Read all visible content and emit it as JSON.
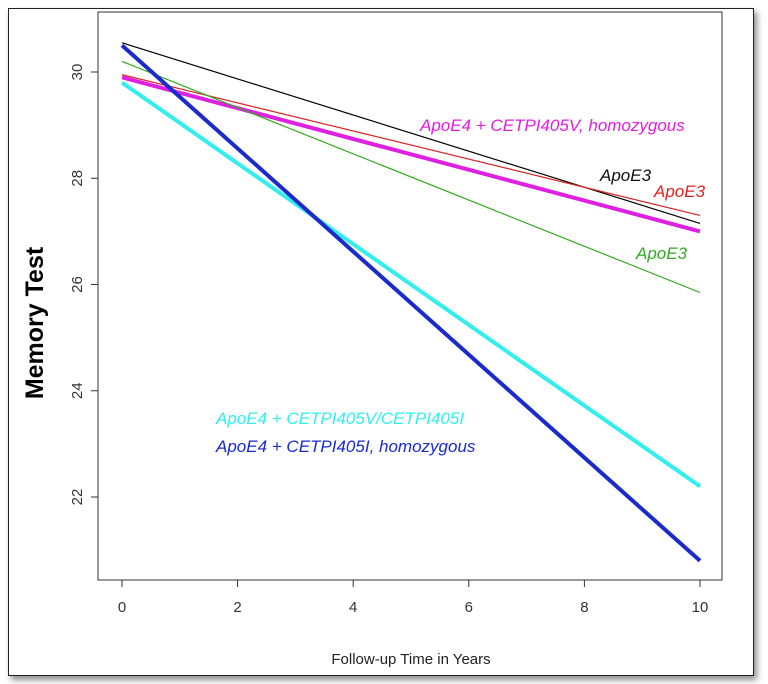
{
  "chart_data": {
    "type": "line",
    "title": "",
    "xlabel": "Follow-up Time in Years",
    "ylabel": "Memory Test",
    "xlim": [
      0,
      10
    ],
    "ylim": [
      20.6,
      30.85
    ],
    "xticks": [
      "0",
      "2",
      "4",
      "6",
      "8",
      "10"
    ],
    "yticks": [
      "22",
      "24",
      "26",
      "28",
      "30"
    ],
    "grid": false,
    "series": [
      {
        "name": "ApoE3",
        "color": "#000000",
        "x": [
          0,
          10
        ],
        "y": [
          30.55,
          27.15
        ]
      },
      {
        "name": "ApoE3",
        "color": "#dd2222",
        "x": [
          0,
          10
        ],
        "y": [
          29.95,
          27.3
        ]
      },
      {
        "name": "ApoE3",
        "color": "#33aa22",
        "x": [
          0,
          10
        ],
        "y": [
          30.2,
          25.85
        ]
      },
      {
        "name": "ApoE4 + CETPI405V, homozygous",
        "color": "#e020e0",
        "x": [
          0,
          10
        ],
        "y": [
          29.9,
          27.0
        ]
      },
      {
        "name": "ApoE4 + CETPI405V/CETPI405I",
        "color": "#33eeee",
        "x": [
          0,
          10
        ],
        "y": [
          29.8,
          22.2
        ]
      },
      {
        "name": "ApoE4 + CETPI405I, homozygous",
        "color": "#1a2acc",
        "x": [
          0,
          10
        ],
        "y": [
          30.5,
          20.8
        ]
      }
    ],
    "annotations": [
      {
        "text": "ApoE4 + CETPI405V, homozygous",
        "color": "#e020e0"
      },
      {
        "text": "ApoE3",
        "color": "#111111"
      },
      {
        "text": "ApoE3",
        "color": "#dd2222"
      },
      {
        "text": "ApoE3",
        "color": "#33aa22"
      },
      {
        "text": "ApoE4 + CETPI405V/CETPI405I",
        "color": "#33eeee"
      },
      {
        "text": "ApoE4 + CETPI405I, homozygous",
        "color": "#1a2acc"
      }
    ]
  }
}
